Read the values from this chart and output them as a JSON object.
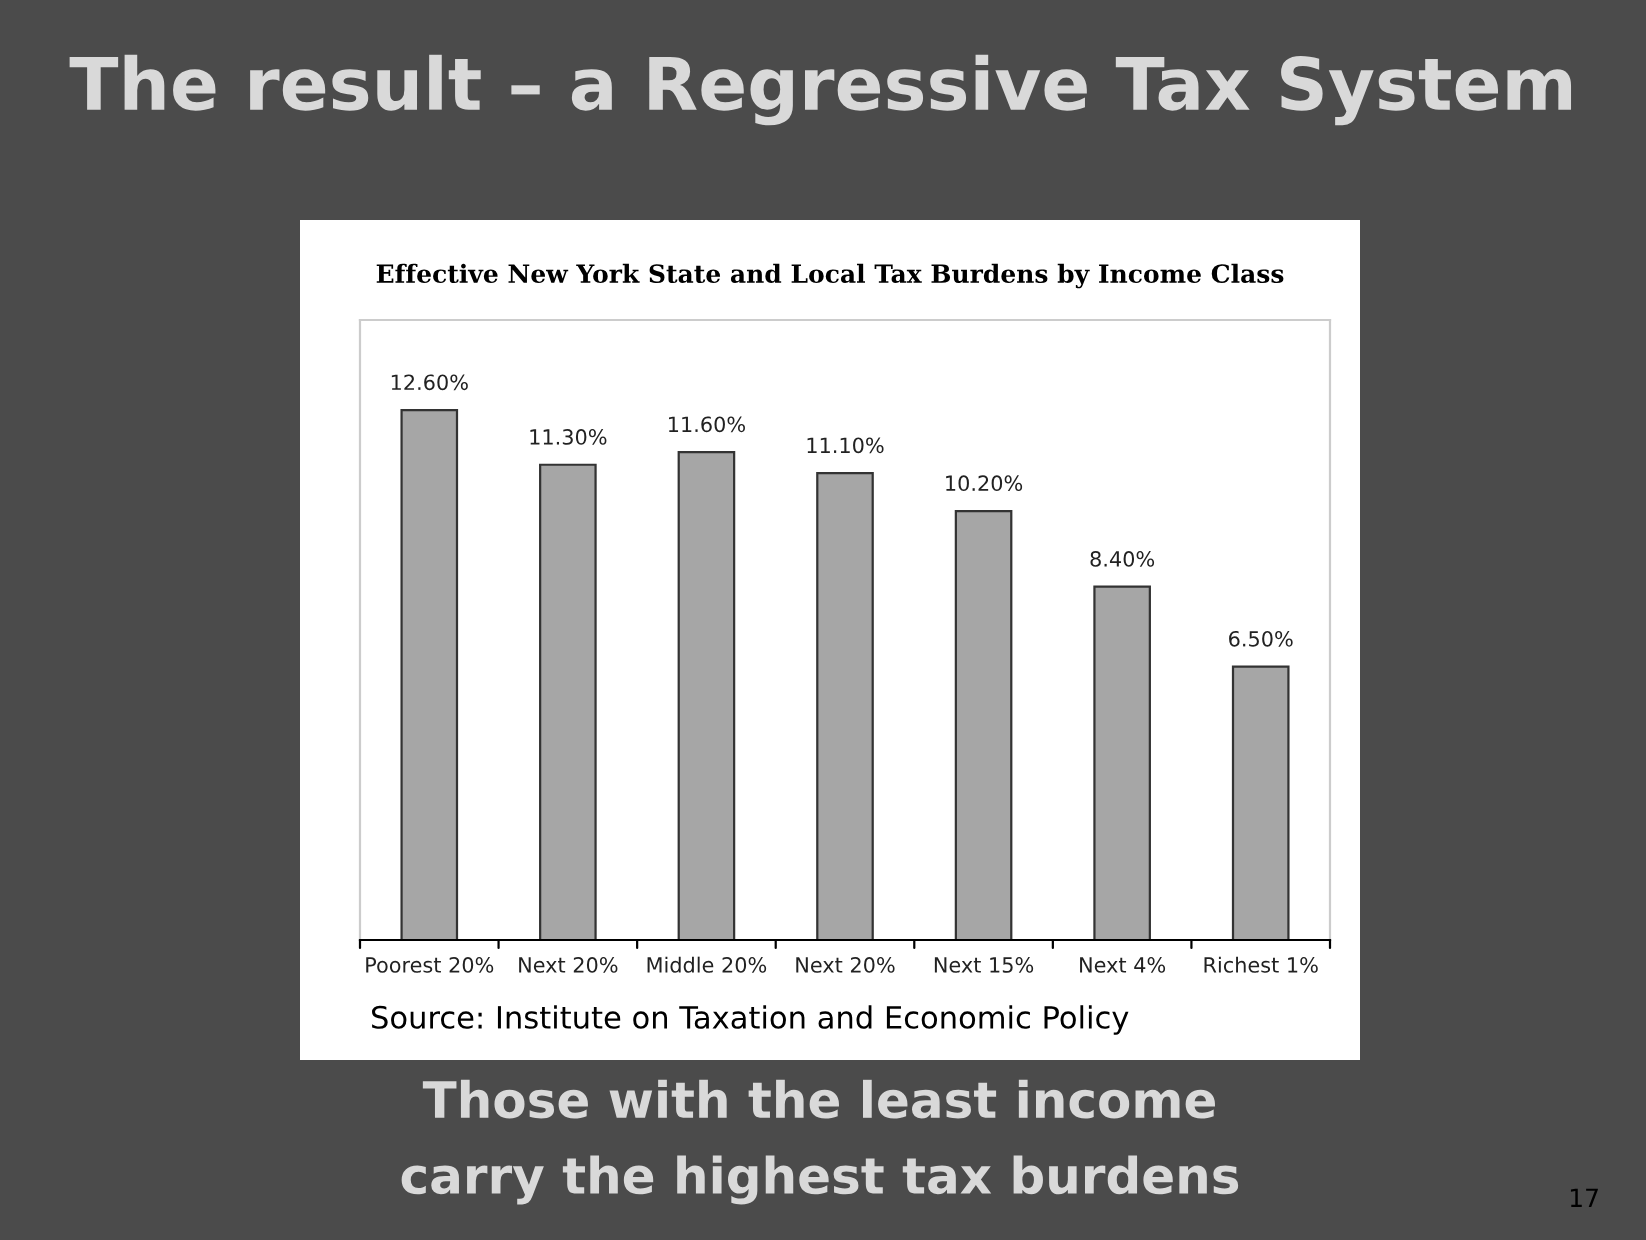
{
  "chart_data": {
    "type": "bar",
    "title": "The result – a Regressive Tax System",
    "subtitle": "Effective New York State and Local Tax Burdens by Income Class",
    "categories": [
      "Poorest 20%",
      "Next 20%",
      "Middle 20%",
      "Next 20%",
      "Next 15%",
      "Next 4%",
      "Richest 1%"
    ],
    "values": [
      12.6,
      11.3,
      11.6,
      11.1,
      10.2,
      8.4,
      6.5
    ],
    "value_labels": [
      "12.60%",
      "11.30%",
      "11.60%",
      "11.10%",
      "10.20%",
      "8.40%",
      "6.50%"
    ],
    "color": "#a6a6a6",
    "grid": false,
    "legend": false,
    "annotations": [
      "Source: Institute on Taxation and Economic Policy",
      "Those with the least income",
      "carry the highest tax burdens",
      "17"
    ]
  }
}
